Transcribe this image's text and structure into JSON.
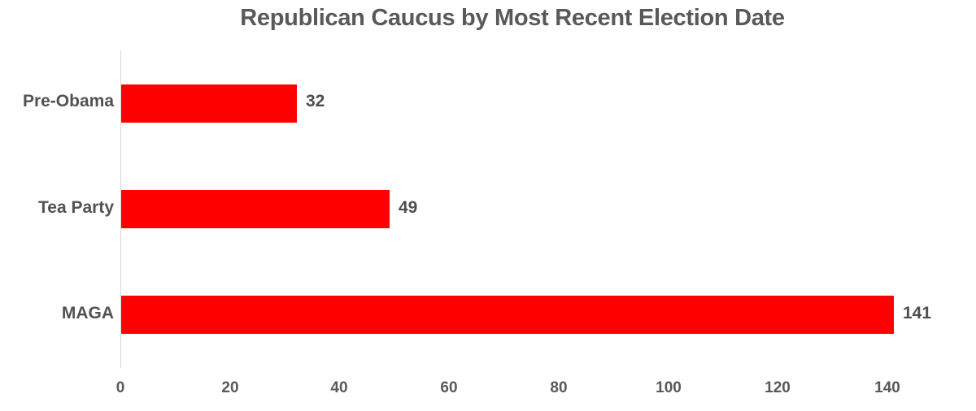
{
  "chart_data": {
    "type": "bar",
    "orientation": "horizontal",
    "title": "Republican Caucus by Most Recent Election Date",
    "categories": [
      "Pre-Obama",
      "Tea Party",
      "MAGA"
    ],
    "values": [
      32,
      49,
      141
    ],
    "data_labels": [
      "32",
      "49",
      "141"
    ],
    "x_ticks": [
      0,
      20,
      40,
      60,
      80,
      100,
      120,
      140
    ],
    "xlim": [
      0,
      150
    ],
    "xlabel": "",
    "ylabel": "",
    "legend_position": "none",
    "grid": "off",
    "colors": {
      "bar": "#ff0000",
      "axis_line": "#d9d9d9",
      "title_text": "#595959",
      "tick_text": "#595959",
      "label_text": "#4d4d4d"
    }
  }
}
